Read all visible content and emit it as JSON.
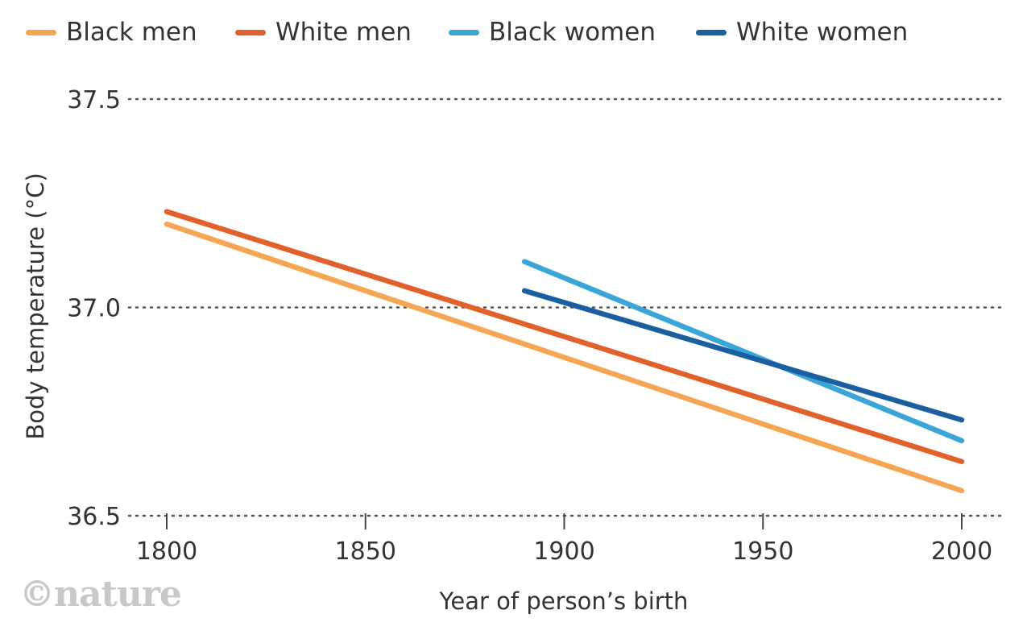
{
  "logo": "©nature",
  "chart_data": {
    "type": "line",
    "title": "",
    "xlabel": "Year of person’s birth",
    "ylabel": "Body temperature (°C)",
    "xlim": [
      1800,
      2000
    ],
    "ylim": [
      36.5,
      37.5
    ],
    "x_ticks": [
      "1800",
      "1850",
      "1900",
      "1950",
      "2000"
    ],
    "y_ticks": [
      "36.5",
      "37.0",
      "37.5"
    ],
    "grid": "horizontal dotted",
    "legend_position": "top",
    "series": [
      {
        "name": "Black men",
        "color": "#f5a652",
        "x": [
          1800,
          2000
        ],
        "y": [
          37.2,
          36.56
        ]
      },
      {
        "name": "White men",
        "color": "#e0622a",
        "x": [
          1800,
          2000
        ],
        "y": [
          37.23,
          36.63
        ]
      },
      {
        "name": "Black women",
        "color": "#3aa6d8",
        "x": [
          1890,
          2000
        ],
        "y": [
          37.11,
          36.68
        ]
      },
      {
        "name": "White women",
        "color": "#1a60a0",
        "x": [
          1890,
          2000
        ],
        "y": [
          37.04,
          36.73
        ]
      }
    ]
  }
}
